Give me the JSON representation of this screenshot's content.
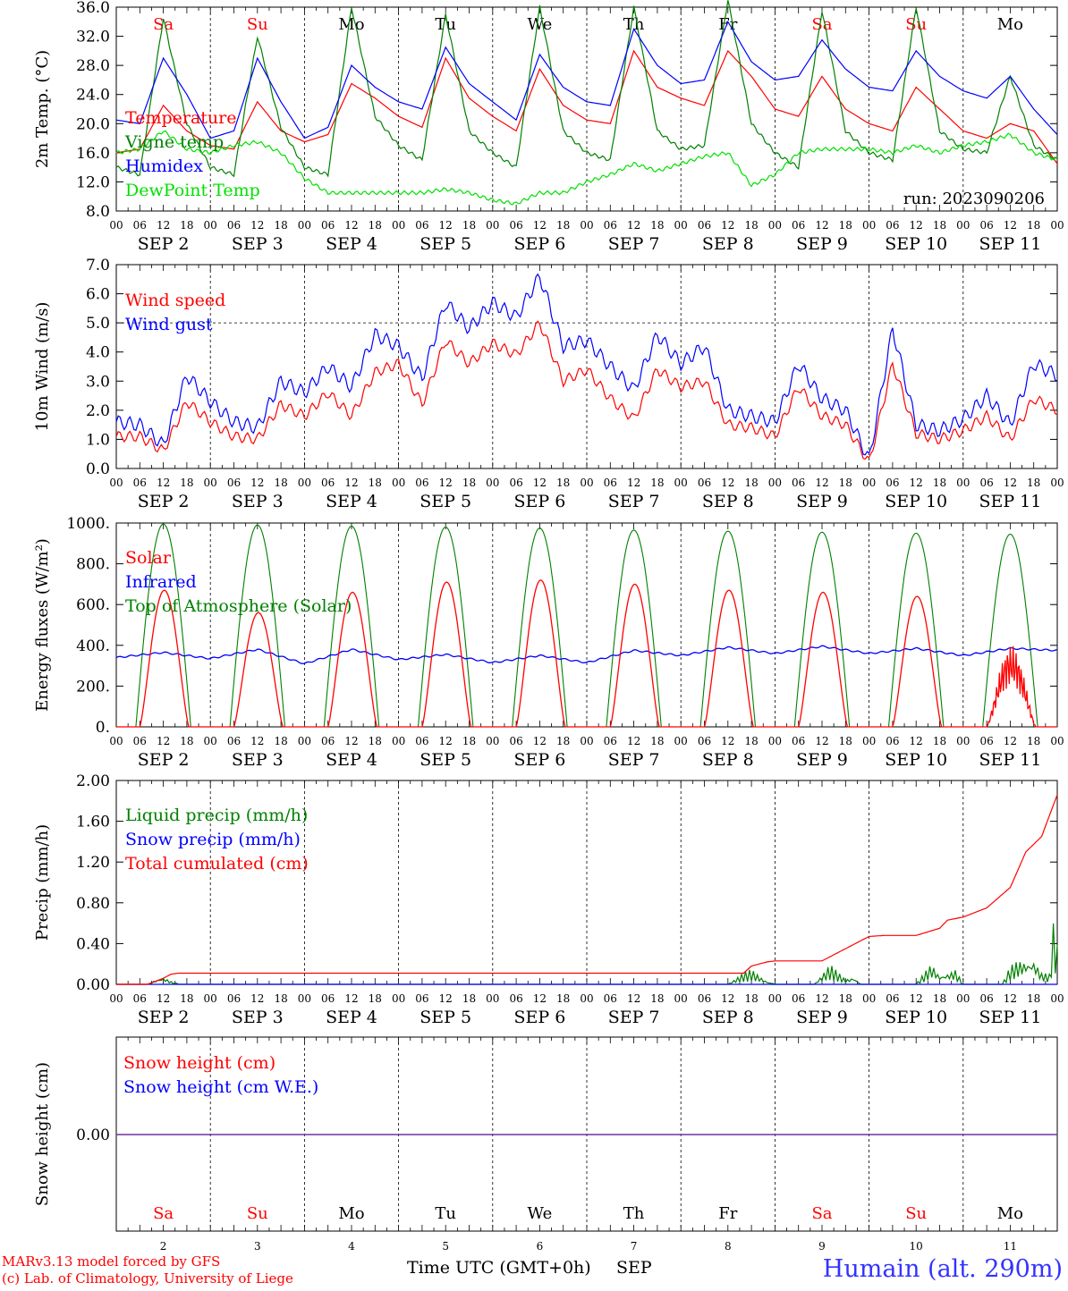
{
  "meteogram": {
    "dates": [
      "SEP 2",
      "SEP 3",
      "SEP 4",
      "SEP 5",
      "SEP 6",
      "SEP 7",
      "SEP 8",
      "SEP 9",
      "SEP 10",
      "SEP 11"
    ],
    "hour_ticks": [
      "00",
      "06",
      "12",
      "18"
    ],
    "weekdays": [
      "Sa",
      "Su",
      "Mo",
      "Tu",
      "We",
      "Th",
      "Fr",
      "Sa",
      "Su",
      "Mo"
    ],
    "weekend_color": "#ff0000",
    "weekday_color": "#000000",
    "day_numbers": [
      "2",
      "3",
      "4",
      "5",
      "6",
      "7",
      "8",
      "9",
      "10",
      "11"
    ],
    "bottom_axis_label": "Time UTC (GMT+0h)",
    "bottom_month_label": "SEP",
    "credit_line1": "MARv3.13 model forced by GFS",
    "credit_line2": "(c) Lab. of Climatology, University of Liege",
    "station": "Humain (alt. 290m)",
    "colors": {
      "red": "#ff0000",
      "blue": "#0000ff",
      "green": "#008000",
      "light_green": "#00e000",
      "purple": "#7030a0"
    }
  },
  "chart_data": [
    {
      "type": "line",
      "ylabel": "2m Temp. (°C)",
      "ylim": [
        8,
        36
      ],
      "yticks": [
        "8.0",
        "12.0",
        "16.0",
        "20.0",
        "24.0",
        "28.0",
        "32.0",
        "36.0"
      ],
      "run_label": "run: 2023090206",
      "x_hours": [
        0,
        6,
        12,
        18,
        24,
        30,
        36,
        42,
        48,
        54,
        60,
        66,
        72,
        78,
        84,
        90,
        96,
        102,
        108,
        114,
        120,
        126,
        132,
        138,
        144,
        150,
        156,
        162,
        168,
        174,
        180,
        186,
        192,
        198,
        204,
        210,
        216,
        222,
        228,
        234,
        240
      ],
      "series": [
        {
          "name": "Temperature",
          "color": "#ff0000",
          "values": [
            16.0,
            16.5,
            22.5,
            19.0,
            17.0,
            16.5,
            23.0,
            19.0,
            17.5,
            18.5,
            25.5,
            23.5,
            21.0,
            19.5,
            29.0,
            23.5,
            21.0,
            19.0,
            27.5,
            22.5,
            20.5,
            20.0,
            30.0,
            25.0,
            23.5,
            22.5,
            30.0,
            26.5,
            22.0,
            21.0,
            26.5,
            22.0,
            20.0,
            19.0,
            25.0,
            22.0,
            19.0,
            18.0,
            20.0,
            19.0,
            14.5
          ]
        },
        {
          "name": "Vigne temp",
          "color": "#008000",
          "values": [
            14.0,
            13.0,
            34.5,
            20.0,
            14.0,
            13.0,
            32.0,
            19.5,
            14.0,
            13.0,
            36.0,
            21.0,
            17.0,
            15.0,
            35.0,
            19.0,
            16.0,
            14.0,
            36.0,
            19.0,
            16.0,
            15.0,
            36.0,
            19.0,
            16.5,
            17.0,
            37.0,
            20.0,
            16.0,
            14.0,
            35.5,
            19.0,
            16.0,
            15.0,
            36.0,
            19.0,
            16.5,
            16.0,
            26.5,
            17.0,
            15.0
          ]
        },
        {
          "name": "Humidex",
          "color": "#0000ff",
          "values": [
            20.5,
            20.0,
            29.0,
            24.0,
            18.0,
            19.0,
            29.0,
            23.0,
            18.0,
            19.5,
            28.0,
            25.0,
            23.0,
            22.0,
            30.5,
            25.5,
            23.0,
            20.5,
            29.5,
            25.0,
            23.0,
            22.5,
            33.0,
            28.0,
            25.5,
            26.0,
            34.0,
            28.5,
            26.0,
            26.5,
            31.5,
            27.5,
            25.0,
            24.5,
            30.0,
            26.5,
            24.5,
            23.5,
            26.5,
            22.0,
            18.5
          ]
        },
        {
          "name": "DewPoint Temp",
          "color": "#00e000",
          "values": [
            16.0,
            16.5,
            19.0,
            16.5,
            16.0,
            17.0,
            17.5,
            16.0,
            12.5,
            10.5,
            10.5,
            10.5,
            10.5,
            10.5,
            11.0,
            10.5,
            9.5,
            9.0,
            10.5,
            10.5,
            12.0,
            13.0,
            14.5,
            13.5,
            14.5,
            15.5,
            16.0,
            11.5,
            13.0,
            16.0,
            16.5,
            16.5,
            16.5,
            16.0,
            17.0,
            16.0,
            17.0,
            17.5,
            18.5,
            16.0,
            15.0
          ]
        }
      ]
    },
    {
      "type": "line",
      "ylabel": "10m Wind (m/s)",
      "ylim": [
        0,
        7
      ],
      "yticks": [
        "0.0",
        "1.0",
        "2.0",
        "3.0",
        "4.0",
        "5.0",
        "6.0",
        "7.0"
      ],
      "ref_line": 5,
      "x_hours": [
        0,
        6,
        12,
        18,
        24,
        30,
        36,
        42,
        48,
        54,
        60,
        66,
        72,
        78,
        84,
        90,
        96,
        102,
        108,
        114,
        120,
        126,
        132,
        138,
        144,
        150,
        156,
        162,
        168,
        174,
        180,
        186,
        192,
        198,
        204,
        210,
        216,
        222,
        228,
        234,
        240
      ],
      "series": [
        {
          "name": "Wind speed",
          "color": "#ff0000",
          "values": [
            1.1,
            1.1,
            0.6,
            2.3,
            1.6,
            1.1,
            1.0,
            2.2,
            1.8,
            2.6,
            1.8,
            3.3,
            3.6,
            2.2,
            4.4,
            3.6,
            4.3,
            3.9,
            5.0,
            3.0,
            3.4,
            2.4,
            1.7,
            3.4,
            2.8,
            3.0,
            1.5,
            1.4,
            1.1,
            2.8,
            1.8,
            1.5,
            0.2,
            3.6,
            1.2,
            1.0,
            1.3,
            1.8,
            1.0,
            2.4,
            2.0
          ]
        },
        {
          "name": "Wind gust",
          "color": "#0000ff",
          "values": [
            1.6,
            1.5,
            0.8,
            3.2,
            2.3,
            1.6,
            1.4,
            3.0,
            2.6,
            3.5,
            2.8,
            4.6,
            4.2,
            3.1,
            5.7,
            4.8,
            5.7,
            5.2,
            6.6,
            4.2,
            4.4,
            3.5,
            2.7,
            4.6,
            3.6,
            4.2,
            2.0,
            1.8,
            1.6,
            3.6,
            2.4,
            2.0,
            0.3,
            4.8,
            1.5,
            1.3,
            1.7,
            2.5,
            1.5,
            3.6,
            3.2
          ]
        }
      ]
    },
    {
      "type": "line",
      "ylabel": "Energy fluxes (W/m²)",
      "ylim": [
        0,
        1000
      ],
      "yticks": [
        "0.",
        "200.",
        "400.",
        "600.",
        "800.",
        "1000."
      ],
      "series": [
        {
          "name": "Solar",
          "color": "#ff0000",
          "daily_peak": [
            670,
            560,
            660,
            710,
            720,
            700,
            670,
            660,
            640,
            400
          ]
        },
        {
          "name": "Infrared",
          "color": "#0000ff",
          "x_hours": [
            0,
            12,
            24,
            36,
            48,
            60,
            72,
            84,
            96,
            108,
            120,
            132,
            144,
            156,
            168,
            180,
            192,
            204,
            216,
            228,
            240
          ],
          "values": [
            340,
            365,
            335,
            380,
            310,
            380,
            330,
            355,
            315,
            350,
            315,
            375,
            350,
            390,
            360,
            395,
            360,
            385,
            350,
            385,
            375
          ]
        },
        {
          "name": "Top of Atmosphere (Solar)",
          "color": "#008000",
          "daily_peak": [
            995,
            990,
            985,
            980,
            975,
            965,
            960,
            955,
            950,
            945
          ]
        }
      ]
    },
    {
      "type": "line",
      "ylabel": "Precip (mm/h)",
      "ylim": [
        0,
        2
      ],
      "yticks": [
        "0.00",
        "0.40",
        "0.80",
        "1.20",
        "1.60",
        "2.00"
      ],
      "series": [
        {
          "name": "Liquid precip (mm/h)",
          "color": "#008000",
          "x_hours": [
            0,
            8,
            10,
            12,
            14,
            16,
            156,
            160,
            162,
            166,
            168,
            178,
            180,
            182,
            186,
            188,
            190,
            204,
            208,
            210,
            214,
            216,
            226,
            228,
            230,
            234,
            236,
            238,
            239,
            240
          ],
          "values": [
            0,
            0,
            0.05,
            0.08,
            0.03,
            0,
            0,
            0.12,
            0.15,
            0.03,
            0,
            0,
            0.1,
            0.2,
            0.05,
            0.08,
            0,
            0,
            0.22,
            0.1,
            0.15,
            0,
            0,
            0.18,
            0.25,
            0.28,
            0.12,
            0.1,
            0.6,
            0.4
          ]
        },
        {
          "name": "Snow precip (mm/h)",
          "color": "#0000ff",
          "x_hours": [
            0,
            240
          ],
          "values": [
            0,
            0
          ]
        },
        {
          "name": "Total cumulated (cm)",
          "color": "#ff0000",
          "x_hours": [
            0,
            8,
            12,
            14,
            16,
            160,
            162,
            166,
            168,
            180,
            186,
            190,
            192,
            196,
            204,
            210,
            212,
            216,
            222,
            228,
            232,
            236,
            240
          ],
          "values": [
            0,
            0,
            0.06,
            0.1,
            0.11,
            0.11,
            0.18,
            0.22,
            0.23,
            0.23,
            0.35,
            0.43,
            0.47,
            0.48,
            0.48,
            0.55,
            0.63,
            0.66,
            0.75,
            0.95,
            1.3,
            1.45,
            1.86
          ]
        }
      ]
    },
    {
      "type": "line",
      "ylabel": "Snow height (cm)",
      "yticks": [
        "0.00"
      ],
      "series": [
        {
          "name": "Snow height (cm)",
          "color": "#ff0000",
          "values": [
            0,
            0
          ]
        },
        {
          "name": "Snow height (cm W.E.)",
          "color": "#0000ff",
          "values": [
            0,
            0
          ]
        }
      ]
    }
  ]
}
